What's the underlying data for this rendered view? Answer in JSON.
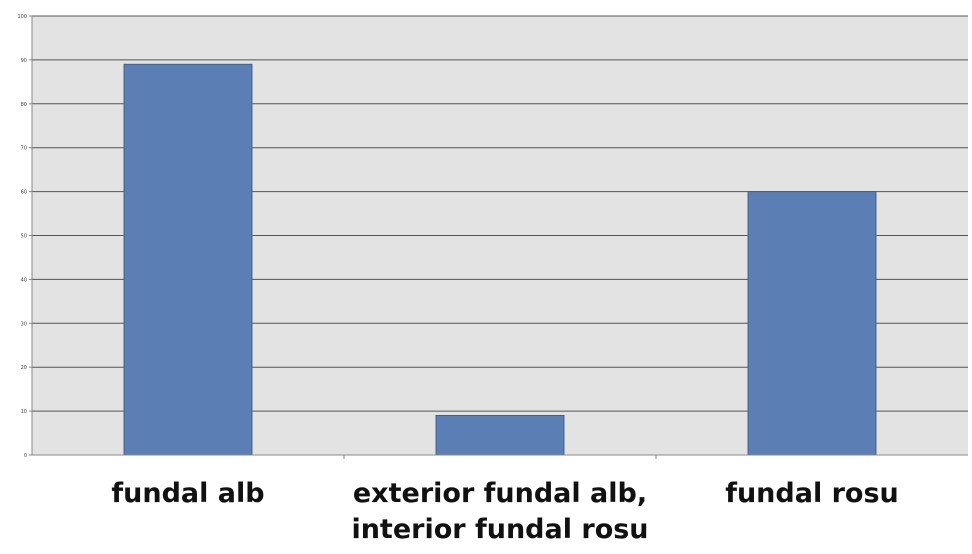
{
  "chart_data": {
    "type": "bar",
    "title": "",
    "xlabel": "",
    "ylabel": "",
    "categories": [
      [
        "fundal alb"
      ],
      [
        "exterior fundal alb,",
        "interior fundal rosu"
      ],
      [
        "fundal rosu"
      ]
    ],
    "values": [
      89,
      9,
      60
    ],
    "ylim": [
      0,
      100
    ],
    "yticks": [
      0,
      10,
      20,
      30,
      40,
      50,
      60,
      70,
      80,
      90,
      100
    ],
    "grid": true,
    "legend": "none",
    "colors": {
      "bar": "#5b7fb4",
      "bar_edge": "#3f5f8f",
      "plot_background": "#e3e3e3",
      "gridline": "#555555"
    }
  }
}
